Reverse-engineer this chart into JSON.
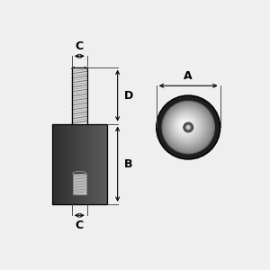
{
  "bg_color": "#efefef",
  "line_color": "#000000",
  "dim_color": "#000000",
  "labels": {
    "A": "A",
    "B": "B",
    "C": "C",
    "D": "D"
  },
  "label_fontsize": 9,
  "arrow_color": "#000000",
  "rubber_dark": "#2a2a2a",
  "rubber_mid": "#3d3d3d",
  "rubber_light": "#555555",
  "thread_bg": "#d0d0d0",
  "thread_line": "#888888",
  "insert_bg": "#c8c8c8",
  "metal_disk_base": "#b8b8b8",
  "hole_color": "#888888"
}
